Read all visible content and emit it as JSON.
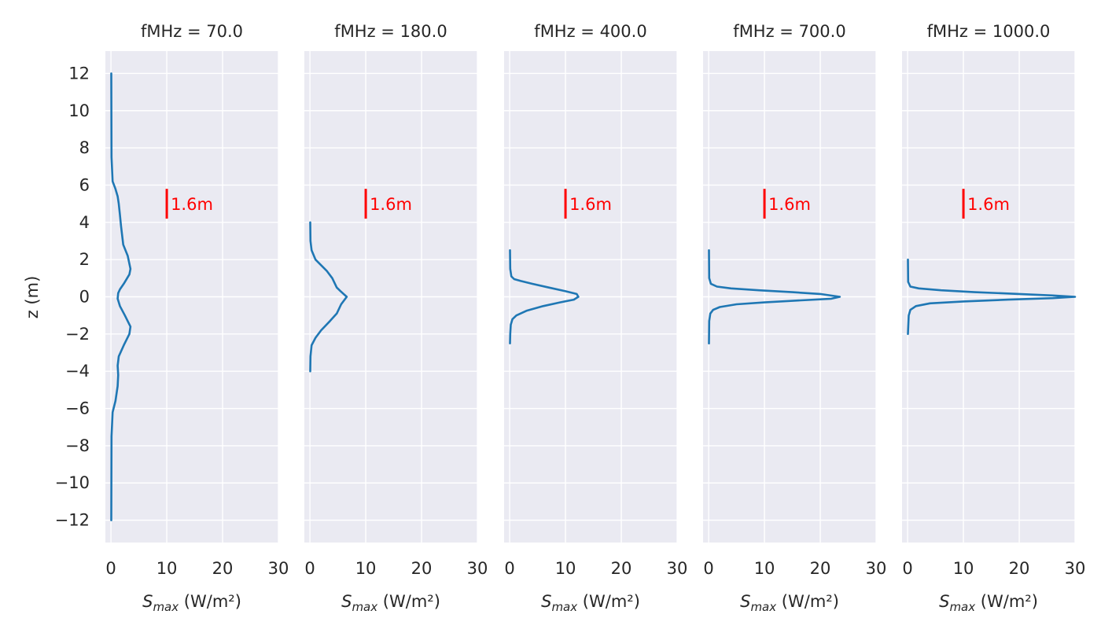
{
  "chart_data": [
    {
      "type": "line",
      "title": "fMHz = 70.0",
      "xlabel": "Smax (W/m²)",
      "ylabel": "z (m)",
      "xlim": [
        -1,
        30
      ],
      "ylim": [
        -13.2,
        13.2
      ],
      "xticks": [
        0,
        10,
        20,
        30
      ],
      "yticks": [
        -12,
        -10,
        -8,
        -6,
        -4,
        -2,
        0,
        2,
        4,
        6,
        8,
        10,
        12
      ],
      "grid": true,
      "series": [
        {
          "color": "#1f77b4",
          "x": [
            0.05,
            0.1,
            0.3,
            0.8,
            1.2,
            1.4,
            1.6,
            1.8,
            2.2,
            3.0,
            3.5,
            3.3,
            2.3,
            1.6,
            1.3,
            1.2,
            1.6,
            2.5,
            3.5,
            3.3,
            2.3,
            1.4,
            1.2,
            1.3,
            1.2,
            0.8,
            0.3,
            0.1,
            0.05
          ],
          "y": [
            12,
            7.5,
            6.2,
            5.8,
            5.4,
            5.0,
            4.4,
            3.8,
            2.8,
            2.2,
            1.5,
            1.2,
            0.7,
            0.4,
            0.2,
            -0.1,
            -0.5,
            -1.0,
            -1.6,
            -2.0,
            -2.6,
            -3.2,
            -3.7,
            -4.2,
            -4.8,
            -5.6,
            -6.2,
            -7.5,
            -12
          ]
        }
      ],
      "annotation": {
        "text": "1.6m",
        "x": 10,
        "y_center": 5.0,
        "height": 1.6,
        "color": "#ff0000"
      }
    },
    {
      "type": "line",
      "title": "fMHz = 180.0",
      "xlabel": "Smax (W/m²)",
      "xlim": [
        -1,
        30
      ],
      "ylim": [
        -13.2,
        13.2
      ],
      "xticks": [
        0,
        10,
        20,
        30
      ],
      "grid": true,
      "series": [
        {
          "color": "#1f77b4",
          "x": [
            0.05,
            0.1,
            0.3,
            1.0,
            2.0,
            3.0,
            4.0,
            4.8,
            5.5,
            6.6,
            5.6,
            4.8,
            3.6,
            2.0,
            1.0,
            0.3,
            0.1,
            0.05
          ],
          "y": [
            4.0,
            3.0,
            2.5,
            2.0,
            1.7,
            1.4,
            1.0,
            0.5,
            0.3,
            0.0,
            -0.4,
            -0.9,
            -1.3,
            -1.8,
            -2.2,
            -2.6,
            -3.2,
            -4.0
          ]
        }
      ],
      "annotation": {
        "text": "1.6m",
        "x": 10,
        "y_center": 5.0,
        "height": 1.6,
        "color": "#ff0000"
      }
    },
    {
      "type": "line",
      "title": "fMHz = 400.0",
      "xlabel": "Smax (W/m²)",
      "xlim": [
        -1,
        30
      ],
      "ylim": [
        -13.2,
        13.2
      ],
      "xticks": [
        0,
        10,
        20,
        30
      ],
      "grid": true,
      "series": [
        {
          "color": "#1f77b4",
          "x": [
            0.05,
            0.1,
            0.3,
            0.8,
            2.0,
            4.0,
            7.0,
            10.0,
            12.0,
            12.3,
            11.5,
            9.0,
            6.0,
            3.0,
            1.2,
            0.5,
            0.2,
            0.1,
            0.05
          ],
          "y": [
            2.5,
            1.5,
            1.1,
            0.95,
            0.85,
            0.7,
            0.5,
            0.3,
            0.15,
            0.0,
            -0.15,
            -0.3,
            -0.5,
            -0.75,
            -1.0,
            -1.2,
            -1.5,
            -2.0,
            -2.5
          ]
        }
      ],
      "annotation": {
        "text": "1.6m",
        "x": 10,
        "y_center": 5.0,
        "height": 1.6,
        "color": "#ff0000"
      }
    },
    {
      "type": "line",
      "title": "fMHz = 700.0",
      "xlabel": "Smax (W/m²)",
      "xlim": [
        -1,
        30
      ],
      "ylim": [
        -13.2,
        13.2
      ],
      "xticks": [
        0,
        10,
        20,
        30
      ],
      "grid": true,
      "series": [
        {
          "color": "#1f77b4",
          "x": [
            0.05,
            0.1,
            0.4,
            1.5,
            4.0,
            9.0,
            15.0,
            20.0,
            23.5,
            22.0,
            16.0,
            10.0,
            5.0,
            2.0,
            0.8,
            0.3,
            0.1,
            0.05
          ],
          "y": [
            2.5,
            1.0,
            0.7,
            0.55,
            0.45,
            0.35,
            0.25,
            0.15,
            0.0,
            -0.1,
            -0.2,
            -0.3,
            -0.4,
            -0.55,
            -0.7,
            -0.9,
            -1.3,
            -2.5
          ]
        }
      ],
      "annotation": {
        "text": "1.6m",
        "x": 10,
        "y_center": 5.0,
        "height": 1.6,
        "color": "#ff0000"
      }
    },
    {
      "type": "line",
      "title": "fMHz = 1000.0",
      "xlabel": "Smax (W/m²)",
      "xlim": [
        -1,
        30
      ],
      "ylim": [
        -13.2,
        13.2
      ],
      "xticks": [
        0,
        10,
        20,
        30
      ],
      "grid": true,
      "series": [
        {
          "color": "#1f77b4",
          "x": [
            0.05,
            0.1,
            0.5,
            2.0,
            6.0,
            12.0,
            20.0,
            26.0,
            30.0,
            26.0,
            18.0,
            10.0,
            4.0,
            1.5,
            0.5,
            0.2,
            0.05
          ],
          "y": [
            2.0,
            0.8,
            0.55,
            0.45,
            0.35,
            0.25,
            0.15,
            0.07,
            0.0,
            -0.07,
            -0.15,
            -0.25,
            -0.35,
            -0.5,
            -0.7,
            -1.0,
            -2.0
          ]
        }
      ],
      "annotation": {
        "text": "1.6m",
        "x": 10,
        "y_center": 5.0,
        "height": 1.6,
        "color": "#ff0000"
      }
    }
  ]
}
